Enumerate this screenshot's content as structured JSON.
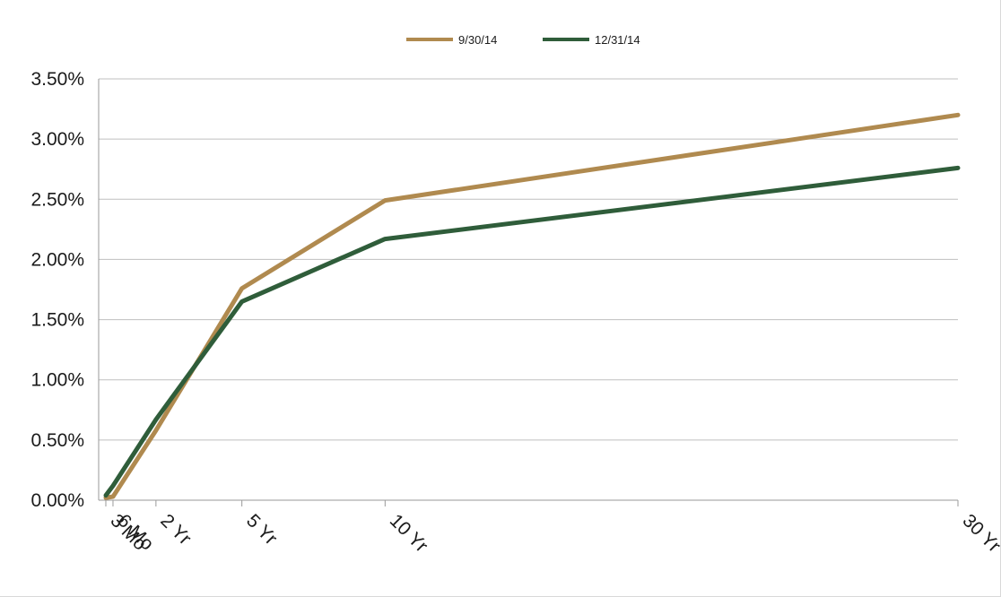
{
  "chart_data": {
    "type": "line",
    "title": "",
    "xlabel": "",
    "ylabel": "",
    "categories": [
      "3 Mo",
      "6 Mo",
      "2 Yr",
      "5 Yr",
      "10 Yr",
      "30 Yr"
    ],
    "x_years": [
      0.25,
      0.5,
      2,
      5,
      10,
      30
    ],
    "ylim": [
      0,
      0.035
    ],
    "yticks": [
      "0.00%",
      "0.50%",
      "1.00%",
      "1.50%",
      "2.00%",
      "2.50%",
      "3.00%",
      "3.50%"
    ],
    "grid": true,
    "legend_position": "top-center",
    "series": [
      {
        "name": "9/30/14",
        "color": "#b08a4f",
        "values": [
          0.0002,
          0.0003,
          0.0058,
          0.0176,
          0.0249,
          0.032
        ]
      },
      {
        "name": "12/31/14",
        "color": "#2f5d3a",
        "values": [
          0.0004,
          0.0012,
          0.0067,
          0.0165,
          0.0217,
          0.0276
        ]
      }
    ]
  }
}
